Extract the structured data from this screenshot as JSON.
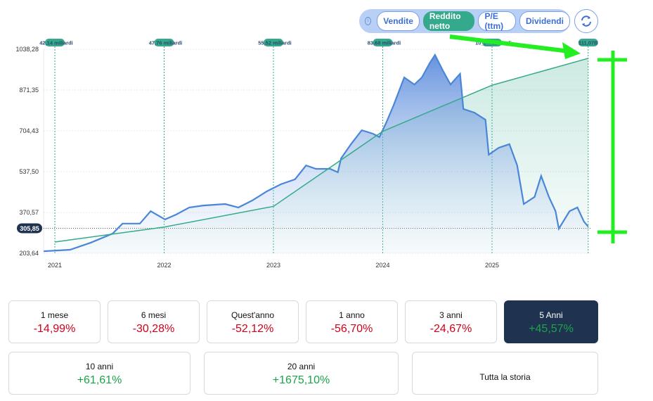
{
  "toolbar": {
    "info_icon": "info-icon",
    "tabs": [
      {
        "label": "Vendite",
        "active": false
      },
      {
        "label": "Reddito netto",
        "active": true
      },
      {
        "label": "P/E (ttm)",
        "active": false
      },
      {
        "label": "Dividendi",
        "active": false
      }
    ],
    "refresh_icon": "refresh-icon"
  },
  "chart_data": {
    "type": "line",
    "yticks": [
      "1038,28",
      "871,35",
      "704,43",
      "537,50",
      "370,57",
      "203,64"
    ],
    "ylim": [
      203.64,
      1038.28
    ],
    "xticks": [
      "2021",
      "2022",
      "2023",
      "2024",
      "2025"
    ],
    "current_price": {
      "label": "305,85",
      "value": 305.85
    },
    "colors": {
      "price": "#4a86d8",
      "net_income": "#35a98c"
    },
    "price_series": [
      [
        "2020-11-25",
        212
      ],
      [
        "2021-02-21",
        218
      ],
      [
        "2021-05-01",
        247
      ],
      [
        "2021-07-13",
        284
      ],
      [
        "2021-08-15",
        325
      ],
      [
        "2021-10-12",
        325
      ],
      [
        "2021-11-17",
        376
      ],
      [
        "2022-01-04",
        342
      ],
      [
        "2022-02-10",
        362
      ],
      [
        "2022-03-26",
        391
      ],
      [
        "2022-05-12",
        399
      ],
      [
        "2022-07-24",
        405
      ],
      [
        "2022-09-06",
        391
      ],
      [
        "2022-10-23",
        420
      ],
      [
        "2022-12-10",
        457
      ],
      [
        "2023-01-26",
        486
      ],
      [
        "2023-03-14",
        506
      ],
      [
        "2023-04-20",
        563
      ],
      [
        "2023-05-23",
        549
      ],
      [
        "2023-07-09",
        549
      ],
      [
        "2023-08-04",
        535
      ],
      [
        "2023-08-15",
        592
      ],
      [
        "2023-09-17",
        650
      ],
      [
        "2023-10-23",
        707
      ],
      [
        "2023-11-29",
        693
      ],
      [
        "2023-12-21",
        679
      ],
      [
        "2024-01-12",
        736
      ],
      [
        "2024-02-06",
        808
      ],
      [
        "2024-03-13",
        923
      ],
      [
        "2024-04-16",
        894
      ],
      [
        "2024-05-11",
        923
      ],
      [
        "2024-06-06",
        981
      ],
      [
        "2024-06-24",
        1015
      ],
      [
        "2024-07-20",
        952
      ],
      [
        "2024-08-15",
        894
      ],
      [
        "2024-09-16",
        938
      ],
      [
        "2024-09-27",
        794
      ],
      [
        "2024-11-03",
        779
      ],
      [
        "2024-12-10",
        750
      ],
      [
        "2024-12-21",
        607
      ],
      [
        "2025-01-23",
        635
      ],
      [
        "2025-02-28",
        650
      ],
      [
        "2025-03-26",
        563
      ],
      [
        "2025-04-17",
        405
      ],
      [
        "2025-05-23",
        434
      ],
      [
        "2025-06-14",
        520
      ],
      [
        "2025-07-10",
        434
      ],
      [
        "2025-08-01",
        376
      ],
      [
        "2025-08-12",
        304
      ],
      [
        "2025-09-17",
        376
      ],
      [
        "2025-10-13",
        391
      ],
      [
        "2025-11-04",
        333
      ],
      [
        "2025-11-18",
        313
      ]
    ],
    "net_income_series": [
      {
        "date": "2021-01-01",
        "value": 42.14,
        "label": "42,14 miliardi"
      },
      {
        "date": "2022-01-01",
        "value": 47.76,
        "label": "47,76 miliardi"
      },
      {
        "date": "2023-01-01",
        "value": 55.52,
        "label": "55,52 miliardi"
      },
      {
        "date": "2024-01-01",
        "value": 83.68,
        "label": "83,68 miliardi"
      },
      {
        "date": "2025-01-01",
        "value": 101.0,
        "label": "10_,__ miliardi"
      },
      {
        "date": "2025-11-18",
        "value": 111.07,
        "label": "111,07B"
      }
    ]
  },
  "periods": [
    {
      "label": "1 mese",
      "value": "-14,99%",
      "positive": false
    },
    {
      "label": "6 mesi",
      "value": "-30,28%",
      "positive": false
    },
    {
      "label": "Quest'anno",
      "value": "-52,12%",
      "positive": false
    },
    {
      "label": "1 anno",
      "value": "-56,70%",
      "positive": false
    },
    {
      "label": "3 anni",
      "value": "-24,67%",
      "positive": false
    },
    {
      "label": "5 Anni",
      "value": "+45,57%",
      "positive": true,
      "selected": true
    },
    {
      "label": "10 anni",
      "value": "+61,61%",
      "positive": true
    },
    {
      "label": "20 anni",
      "value": "+1675,10%",
      "positive": true
    },
    {
      "label": "Tutta la storia",
      "value": "",
      "positive": true
    }
  ]
}
